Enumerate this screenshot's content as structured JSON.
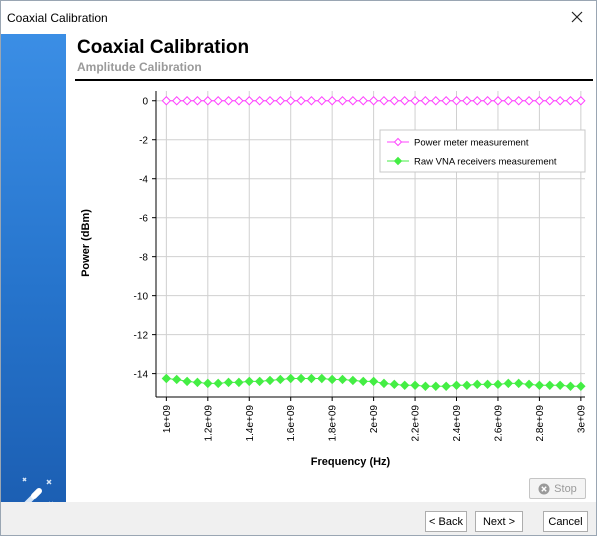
{
  "window": {
    "title": "Coaxial Calibration"
  },
  "header": {
    "title": "Coaxial Calibration",
    "subtitle": "Amplitude Calibration"
  },
  "buttons": {
    "stop": "Stop",
    "back": "< Back",
    "next": "Next >",
    "cancel": "Cancel"
  },
  "chart_data": {
    "type": "line",
    "xlabel": "Frequency (Hz)",
    "ylabel": "Power (dBm)",
    "xlim": [
      950000000.0,
      3020000000.0
    ],
    "ylim": [
      -15.2,
      0.5
    ],
    "x_ticks": [
      1000000000.0,
      1200000000.0,
      1400000000.0,
      1600000000.0,
      1800000000.0,
      2000000000.0,
      2200000000.0,
      2400000000.0,
      2600000000.0,
      2800000000.0,
      3000000000.0
    ],
    "x_tick_labels": [
      "1e+09",
      "1.2e+09",
      "1.4e+09",
      "1.6e+09",
      "1.8e+09",
      "2e+09",
      "2.2e+09",
      "2.4e+09",
      "2.6e+09",
      "2.8e+09",
      "3e+09"
    ],
    "y_ticks": [
      0,
      -2,
      -4,
      -6,
      -8,
      -10,
      -12,
      -14
    ],
    "y_tick_labels": [
      "0",
      "-2",
      "-4",
      "-6",
      "-8",
      "-10",
      "-12",
      "-14"
    ],
    "grid": true,
    "legend_position": "top-right",
    "x": [
      1000000000.0,
      1050000000.0,
      1100000000.0,
      1150000000.0,
      1200000000.0,
      1250000000.0,
      1300000000.0,
      1350000000.0,
      1400000000.0,
      1450000000.0,
      1500000000.0,
      1550000000.0,
      1600000000.0,
      1650000000.0,
      1700000000.0,
      1750000000.0,
      1800000000.0,
      1850000000.0,
      1900000000.0,
      1950000000.0,
      2000000000.0,
      2050000000.0,
      2100000000.0,
      2150000000.0,
      2200000000.0,
      2250000000.0,
      2300000000.0,
      2350000000.0,
      2400000000.0,
      2450000000.0,
      2500000000.0,
      2550000000.0,
      2600000000.0,
      2650000000.0,
      2700000000.0,
      2750000000.0,
      2800000000.0,
      2850000000.0,
      2900000000.0,
      2950000000.0,
      3000000000.0
    ],
    "series": [
      {
        "name": "Power meter measurement",
        "color": "#ff44ff",
        "marker": "diamond-open",
        "values": [
          0,
          0,
          0,
          0,
          0,
          0,
          0,
          0,
          0,
          0,
          0,
          0,
          0,
          0,
          0,
          0,
          0,
          0,
          0,
          0,
          0,
          0,
          0,
          0,
          0,
          0,
          0,
          0,
          0,
          0,
          0,
          0,
          0,
          0,
          0,
          0,
          0,
          0,
          0,
          0,
          0
        ]
      },
      {
        "name": "Raw VNA receivers measurement",
        "color": "#44ee44",
        "marker": "diamond-filled",
        "values": [
          -14.25,
          -14.3,
          -14.4,
          -14.45,
          -14.5,
          -14.5,
          -14.45,
          -14.45,
          -14.4,
          -14.4,
          -14.35,
          -14.3,
          -14.25,
          -14.25,
          -14.25,
          -14.25,
          -14.3,
          -14.3,
          -14.35,
          -14.4,
          -14.4,
          -14.5,
          -14.55,
          -14.6,
          -14.6,
          -14.65,
          -14.65,
          -14.65,
          -14.6,
          -14.6,
          -14.55,
          -14.55,
          -14.55,
          -14.5,
          -14.5,
          -14.55,
          -14.6,
          -14.6,
          -14.6,
          -14.65,
          -14.65
        ]
      }
    ]
  }
}
